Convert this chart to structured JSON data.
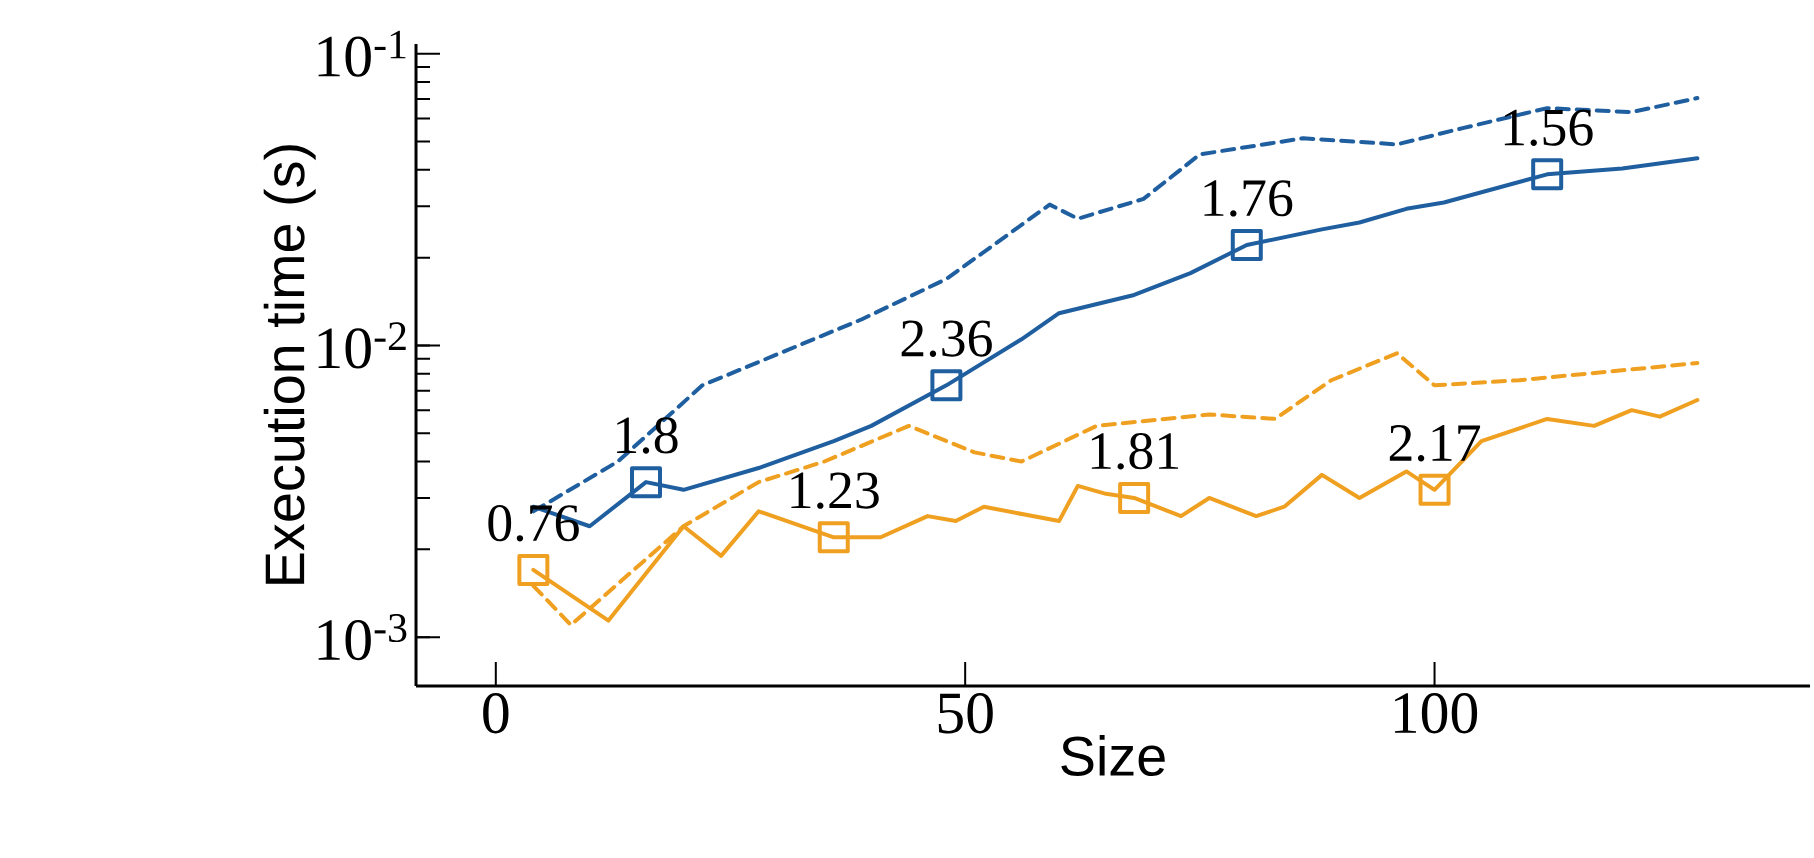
{
  "chart_data": {
    "type": "line",
    "xlabel": "Size",
    "ylabel": "Execution time (s)",
    "log": "y",
    "xlim": [
      -8.5,
      140
    ],
    "ylim": [
      0.00068,
      0.108
    ],
    "xticks": [
      0,
      50,
      100
    ],
    "yticks": [
      {
        "value": 0.001,
        "label": "10$^{-3}$"
      },
      {
        "value": 0.01,
        "label": "10$^{-2}$"
      },
      {
        "value": 0.1,
        "label": "10$^{-1}$"
      }
    ],
    "series": [
      {
        "color": "#1f5fa0",
        "line_style": "dashed",
        "x": [
          4,
          13,
          22,
          39,
          48,
          59,
          62,
          69,
          75,
          86,
          96,
          103,
          112,
          121,
          128
        ],
        "values": [
          0.0027,
          0.004,
          0.0073,
          0.0123,
          0.0169,
          0.0304,
          0.0272,
          0.0318,
          0.0452,
          0.0513,
          0.0489,
          0.0556,
          0.0651,
          0.0631,
          0.0705
        ]
      },
      {
        "color": "#f0a020",
        "line_style": "dashed",
        "x": [
          4,
          8,
          20,
          28,
          35,
          44,
          51,
          56,
          64,
          76,
          83,
          89,
          96,
          100,
          109,
          128
        ],
        "values": [
          0.0015,
          0.0011,
          0.0024,
          0.0034,
          0.004,
          0.0053,
          0.0043,
          0.004,
          0.0053,
          0.0058,
          0.0056,
          0.0076,
          0.0094,
          0.0073,
          0.0076,
          0.0087
        ]
      },
      {
        "color": "#1f5fa0",
        "line_style": "solid",
        "x": [
          4,
          10,
          16,
          20,
          28,
          36,
          40,
          48,
          56,
          60,
          68,
          74,
          80,
          88,
          92,
          97,
          101,
          112,
          120,
          128
        ],
        "values": [
          0.0028,
          0.0024,
          0.0034,
          0.0032,
          0.0038,
          0.0047,
          0.0053,
          0.0073,
          0.0105,
          0.0129,
          0.0149,
          0.0177,
          0.0221,
          0.025,
          0.0264,
          0.0294,
          0.0309,
          0.0386,
          0.0404,
          0.0438
        ]
      },
      {
        "color": "#f0a020",
        "line_style": "solid",
        "x": [
          4,
          12,
          20,
          24,
          28,
          36,
          41,
          46,
          49,
          52,
          60,
          62,
          65,
          68,
          73,
          76,
          81,
          84,
          88,
          92,
          97,
          100,
          105,
          112,
          117,
          121,
          124,
          128
        ],
        "values": [
          0.0017,
          0.00114,
          0.0024,
          0.0019,
          0.0027,
          0.0022,
          0.0022,
          0.0026,
          0.0025,
          0.0028,
          0.0025,
          0.0033,
          0.0031,
          0.003,
          0.0026,
          0.003,
          0.0026,
          0.0028,
          0.0036,
          0.003,
          0.0037,
          0.0032,
          0.0047,
          0.0056,
          0.0053,
          0.006,
          0.0057,
          0.0065
        ]
      },
      {
        "type": "scatter",
        "marker": "square",
        "color": "#1f5fa0",
        "x": [
          16,
          48,
          80,
          112
        ],
        "values": [
          0.0034,
          0.0073,
          0.0221,
          0.0386
        ]
      },
      {
        "type": "scatter",
        "marker": "square",
        "color": "#f0a020",
        "x": [
          4,
          36,
          68,
          100
        ],
        "values": [
          0.0017,
          0.0022,
          0.003,
          0.0032
        ]
      }
    ],
    "annotations": [
      {
        "text": "0.76",
        "x": 4,
        "y": 0.0017
      },
      {
        "text": "1.8",
        "x": 16,
        "y": 0.0034
      },
      {
        "text": "1.23",
        "x": 36,
        "y": 0.0022
      },
      {
        "text": "2.36",
        "x": 48,
        "y": 0.0073
      },
      {
        "text": "1.81",
        "x": 68,
        "y": 0.003
      },
      {
        "text": "1.76",
        "x": 80,
        "y": 0.0221
      },
      {
        "text": "2.17",
        "x": 100,
        "y": 0.0032
      },
      {
        "text": "1.56",
        "x": 112,
        "y": 0.0386
      }
    ]
  }
}
